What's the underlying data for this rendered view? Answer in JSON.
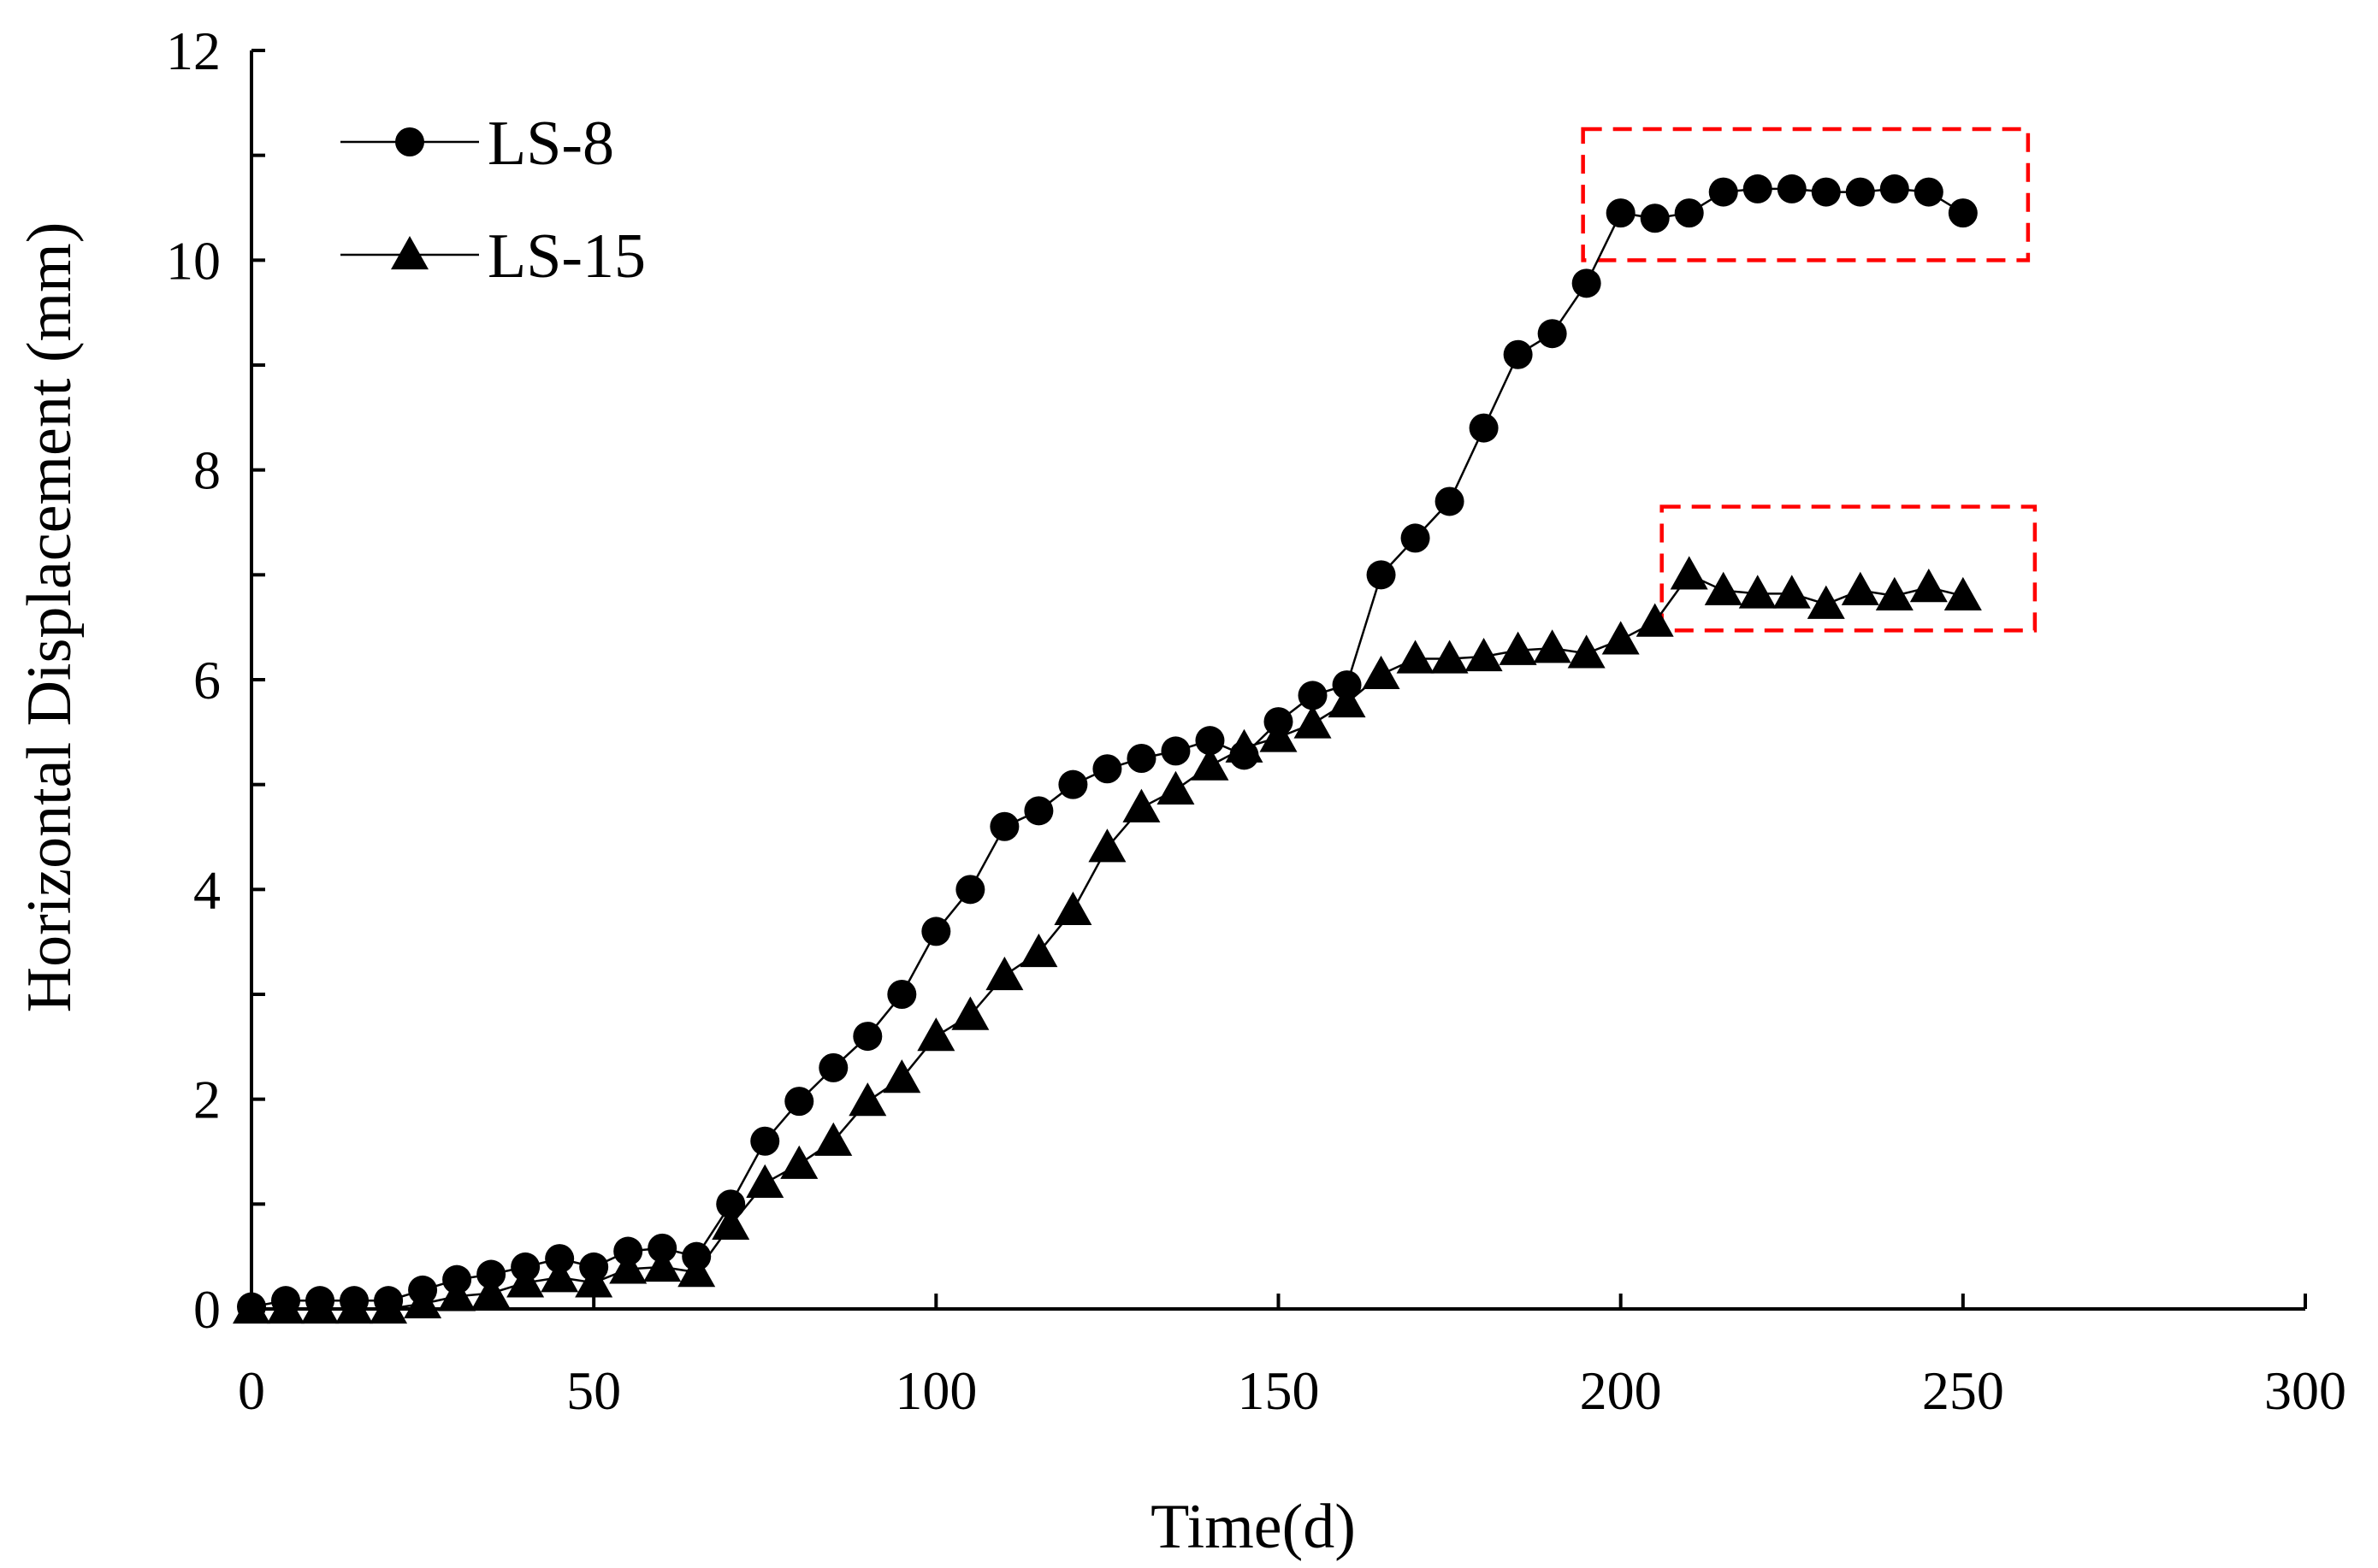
{
  "chart_data": {
    "type": "line",
    "title": "",
    "xlabel": "Time(d)",
    "ylabel": "Horizontal Displacement (mm)",
    "xlim": [
      0,
      300
    ],
    "ylim": [
      0,
      12
    ],
    "xticks": [
      0,
      50,
      100,
      150,
      200,
      250,
      300
    ],
    "xtick_labels": [
      "0",
      "50",
      "100",
      "150",
      "200",
      "250",
      "300"
    ],
    "yticks": [
      0,
      2,
      4,
      6,
      8,
      10,
      12
    ],
    "ytick_labels": [
      "0",
      "2",
      "4",
      "6",
      "8",
      "10",
      "12"
    ],
    "grid": false,
    "legend_position": "top-left",
    "series": [
      {
        "name": "LS-8",
        "marker": "circle",
        "color": "#000000",
        "x": [
          0,
          5,
          10,
          15,
          20,
          25,
          30,
          35,
          40,
          45,
          50,
          55,
          60,
          65,
          70,
          75,
          80,
          85,
          90,
          95,
          100,
          105,
          110,
          115,
          120,
          125,
          130,
          135,
          140,
          145,
          150,
          155,
          160,
          165,
          170,
          175,
          180,
          185,
          190,
          195,
          200,
          205,
          210,
          215,
          220,
          225,
          230,
          235,
          240,
          245,
          250
        ],
        "y": [
          0.02,
          0.08,
          0.08,
          0.08,
          0.08,
          0.18,
          0.28,
          0.33,
          0.4,
          0.48,
          0.4,
          0.55,
          0.58,
          0.5,
          1.0,
          1.6,
          1.98,
          2.3,
          2.6,
          3.0,
          3.6,
          4.0,
          4.6,
          4.75,
          5.0,
          5.15,
          5.25,
          5.32,
          5.42,
          5.28,
          5.6,
          5.85,
          5.95,
          7.0,
          7.35,
          7.7,
          8.4,
          9.1,
          9.3,
          9.78,
          10.45,
          10.4,
          10.45,
          10.65,
          10.68,
          10.68,
          10.65,
          10.65,
          10.68,
          10.65,
          10.45
        ]
      },
      {
        "name": "LS-15",
        "marker": "triangle",
        "color": "#000000",
        "x": [
          0,
          5,
          10,
          15,
          20,
          25,
          30,
          35,
          40,
          45,
          50,
          55,
          60,
          65,
          70,
          75,
          80,
          85,
          90,
          95,
          100,
          105,
          110,
          115,
          120,
          125,
          130,
          135,
          140,
          145,
          150,
          155,
          160,
          165,
          170,
          175,
          180,
          185,
          190,
          195,
          200,
          205,
          210,
          215,
          220,
          225,
          230,
          235,
          240,
          245,
          250
        ],
        "y": [
          0.0,
          0.0,
          0.0,
          0.0,
          0.0,
          0.05,
          0.12,
          0.15,
          0.25,
          0.3,
          0.25,
          0.38,
          0.4,
          0.35,
          0.8,
          1.2,
          1.38,
          1.6,
          1.98,
          2.2,
          2.6,
          2.8,
          3.18,
          3.4,
          3.8,
          4.4,
          4.78,
          4.95,
          5.18,
          5.35,
          5.45,
          5.58,
          5.78,
          6.05,
          6.2,
          6.2,
          6.22,
          6.28,
          6.3,
          6.25,
          6.38,
          6.55,
          7.0,
          6.85,
          6.82,
          6.82,
          6.72,
          6.85,
          6.8,
          6.88,
          6.8
        ]
      }
    ],
    "annotations": [
      {
        "type": "dashed-rectangle",
        "color": "#ff0000",
        "x_range": [
          194.5,
          259.5
        ],
        "y_range": [
          10.0,
          11.25
        ],
        "description_target": "LS-8 plateau"
      },
      {
        "type": "dashed-rectangle",
        "color": "#ff0000",
        "x_range": [
          206,
          260.5
        ],
        "y_range": [
          6.47,
          7.65
        ],
        "description_target": "LS-15 plateau"
      }
    ]
  }
}
